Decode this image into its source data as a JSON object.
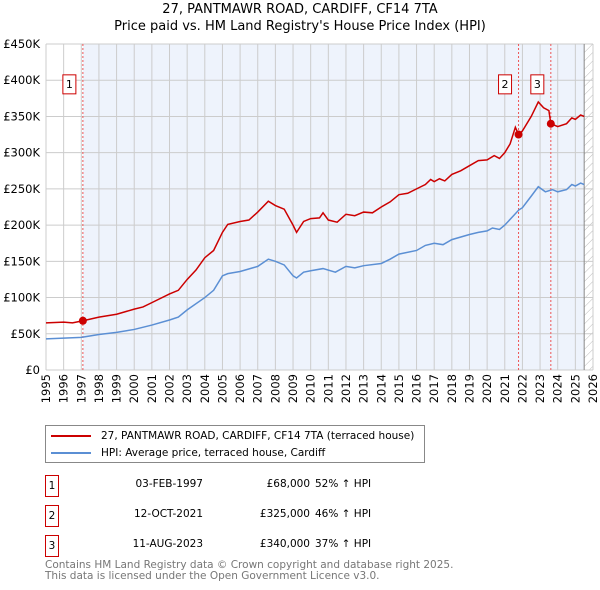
{
  "chart_data": {
    "type": "line",
    "title": "27, PANTMAWR ROAD, CARDIFF, CF14 7TA",
    "subtitle": "Price paid vs. HM Land Registry's House Price Index (HPI)",
    "xlim": [
      1995,
      2026
    ],
    "ylim": [
      0,
      450000
    ],
    "x_ticks": [
      "1995",
      "1996",
      "1997",
      "1998",
      "1999",
      "2000",
      "2001",
      "2002",
      "2003",
      "2004",
      "2005",
      "2006",
      "2007",
      "2008",
      "2009",
      "2010",
      "2011",
      "2012",
      "2013",
      "2014",
      "2015",
      "2016",
      "2017",
      "2018",
      "2019",
      "2020",
      "2021",
      "2022",
      "2023",
      "2024",
      "2025",
      "2026"
    ],
    "y_ticks": [
      {
        "v": 0,
        "label": "£0"
      },
      {
        "v": 50000,
        "label": "£50K"
      },
      {
        "v": 100000,
        "label": "£100K"
      },
      {
        "v": 150000,
        "label": "£150K"
      },
      {
        "v": 200000,
        "label": "£200K"
      },
      {
        "v": 250000,
        "label": "£250K"
      },
      {
        "v": 300000,
        "label": "£300K"
      },
      {
        "v": 350000,
        "label": "£350K"
      },
      {
        "v": 400000,
        "label": "£400K"
      },
      {
        "v": 450000,
        "label": "£450K"
      }
    ],
    "grid": true,
    "series": [
      {
        "name": "27, PANTMAWR ROAD, CARDIFF, CF14 7TA (terraced house)",
        "color": "#cc0000",
        "points": [
          [
            1995,
            65
          ],
          [
            1996,
            66
          ],
          [
            1996.5,
            65
          ],
          [
            1997.1,
            68
          ],
          [
            1998,
            73
          ],
          [
            1999,
            77
          ],
          [
            2000,
            84
          ],
          [
            2000.5,
            87
          ],
          [
            2001,
            93
          ],
          [
            2002,
            105
          ],
          [
            2002.5,
            110
          ],
          [
            2003,
            125
          ],
          [
            2003.5,
            138
          ],
          [
            2004,
            155
          ],
          [
            2004.5,
            165
          ],
          [
            2005,
            190
          ],
          [
            2005.3,
            201
          ],
          [
            2006,
            205
          ],
          [
            2006.5,
            207
          ],
          [
            2007,
            218
          ],
          [
            2007.6,
            233
          ],
          [
            2008,
            227
          ],
          [
            2008.5,
            222
          ],
          [
            2009,
            200
          ],
          [
            2009.2,
            190
          ],
          [
            2009.6,
            205
          ],
          [
            2010,
            209
          ],
          [
            2010.5,
            210
          ],
          [
            2010.7,
            217
          ],
          [
            2011,
            207
          ],
          [
            2011.5,
            204
          ],
          [
            2012,
            215
          ],
          [
            2012.5,
            213
          ],
          [
            2013,
            218
          ],
          [
            2013.5,
            217
          ],
          [
            2014,
            225
          ],
          [
            2014.5,
            232
          ],
          [
            2015,
            242
          ],
          [
            2015.5,
            244
          ],
          [
            2016,
            250
          ],
          [
            2016.5,
            256
          ],
          [
            2016.8,
            263
          ],
          [
            2017,
            260
          ],
          [
            2017.3,
            264
          ],
          [
            2017.6,
            261
          ],
          [
            2018,
            270
          ],
          [
            2018.5,
            275
          ],
          [
            2019,
            282
          ],
          [
            2019.5,
            289
          ],
          [
            2020,
            290
          ],
          [
            2020.4,
            296
          ],
          [
            2020.7,
            292
          ],
          [
            2021,
            300
          ],
          [
            2021.3,
            312
          ],
          [
            2021.6,
            335
          ],
          [
            2021.78,
            325
          ],
          [
            2022,
            330
          ],
          [
            2022.5,
            350
          ],
          [
            2022.9,
            370
          ],
          [
            2023.2,
            362
          ],
          [
            2023.5,
            358
          ],
          [
            2023.61,
            340
          ],
          [
            2024,
            336
          ],
          [
            2024.5,
            340
          ],
          [
            2024.8,
            348
          ],
          [
            2025,
            346
          ],
          [
            2025.3,
            352
          ],
          [
            2025.5,
            350
          ]
        ]
      },
      {
        "name": "HPI: Average price, terraced house, Cardiff",
        "color": "#5b8fd4",
        "points": [
          [
            1995,
            43
          ],
          [
            1996,
            44
          ],
          [
            1997,
            45
          ],
          [
            1998,
            49
          ],
          [
            1999,
            52
          ],
          [
            2000,
            56
          ],
          [
            2001,
            62
          ],
          [
            2002,
            69
          ],
          [
            2002.5,
            73
          ],
          [
            2003,
            83
          ],
          [
            2004,
            100
          ],
          [
            2004.5,
            110
          ],
          [
            2005,
            130
          ],
          [
            2005.3,
            133
          ],
          [
            2006,
            136
          ],
          [
            2007,
            143
          ],
          [
            2007.6,
            153
          ],
          [
            2008,
            150
          ],
          [
            2008.5,
            145
          ],
          [
            2009,
            130
          ],
          [
            2009.2,
            127
          ],
          [
            2009.6,
            135
          ],
          [
            2010,
            137
          ],
          [
            2010.7,
            140
          ],
          [
            2011.4,
            135
          ],
          [
            2012,
            143
          ],
          [
            2012.5,
            141
          ],
          [
            2013,
            144
          ],
          [
            2014,
            147
          ],
          [
            2014.5,
            153
          ],
          [
            2015,
            160
          ],
          [
            2016,
            165
          ],
          [
            2016.5,
            172
          ],
          [
            2017,
            175
          ],
          [
            2017.5,
            173
          ],
          [
            2018,
            180
          ],
          [
            2019,
            187
          ],
          [
            2019.5,
            190
          ],
          [
            2020,
            192
          ],
          [
            2020.3,
            196
          ],
          [
            2020.7,
            194
          ],
          [
            2021,
            200
          ],
          [
            2021.8,
            221
          ],
          [
            2022,
            224
          ],
          [
            2022.5,
            240
          ],
          [
            2022.9,
            253
          ],
          [
            2023.3,
            246
          ],
          [
            2023.7,
            249
          ],
          [
            2024,
            246
          ],
          [
            2024.5,
            249
          ],
          [
            2024.8,
            256
          ],
          [
            2025,
            254
          ],
          [
            2025.3,
            258
          ],
          [
            2025.5,
            256
          ]
        ]
      }
    ],
    "sales": [
      {
        "id": "1",
        "x": 1997.09,
        "price": 68000,
        "date": "03-FEB-1997",
        "price_label": "£68,000",
        "hpi": "52% ↑ HPI"
      },
      {
        "id": "2",
        "x": 2021.78,
        "price": 325000,
        "date": "12-OCT-2021",
        "price_label": "£325,000",
        "hpi": "46% ↑ HPI"
      },
      {
        "id": "3",
        "x": 2023.61,
        "price": 340000,
        "date": "11-AUG-2023",
        "price_label": "£340,000",
        "hpi": "37% ↑ HPI"
      }
    ],
    "forecast_start": 2025.5,
    "legend_placement": "below"
  },
  "footer": {
    "line1": "Contains HM Land Registry data © Crown copyright and database right 2025.",
    "line2": "This data is licensed under the Open Government Licence v3.0."
  }
}
